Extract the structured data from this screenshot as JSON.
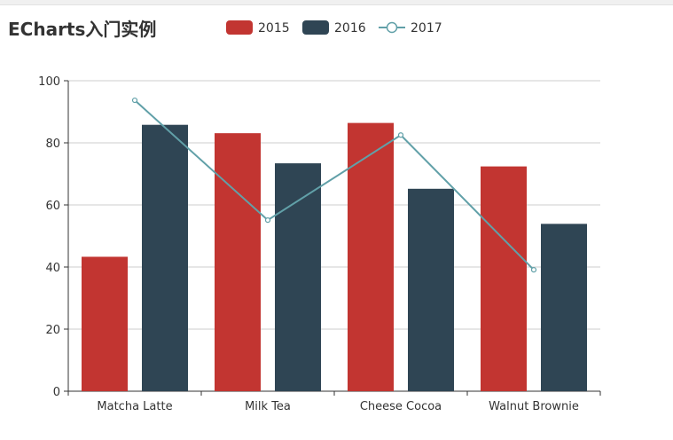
{
  "title": "ECharts入门实例",
  "colors": {
    "s2015": "#c23531",
    "s2016": "#2f4554",
    "s2017": "#61a0a8",
    "axis": "#333333",
    "grid": "#cccccc"
  },
  "chart_data": {
    "type": "bar",
    "title": "ECharts入门实例",
    "categories": [
      "Matcha Latte",
      "Milk Tea",
      "Cheese Cocoa",
      "Walnut Brownie"
    ],
    "series": [
      {
        "name": "2015",
        "type": "bar",
        "values": [
          43.3,
          83.1,
          86.4,
          72.4
        ]
      },
      {
        "name": "2016",
        "type": "bar",
        "values": [
          85.8,
          73.4,
          65.2,
          53.9
        ]
      },
      {
        "name": "2017",
        "type": "line",
        "values": [
          93.7,
          55.1,
          82.5,
          39.1
        ]
      }
    ],
    "ylim": [
      0,
      100
    ],
    "yticks": [
      0,
      20,
      40,
      60,
      80,
      100
    ],
    "grid": true,
    "legend_position": "top"
  }
}
